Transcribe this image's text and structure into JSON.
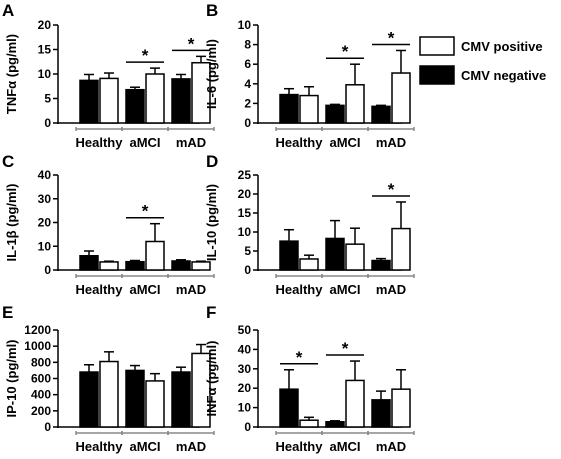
{
  "colors": {
    "cmv_negative": "#000000",
    "cmv_positive": "#ffffff",
    "axis": "#000000"
  },
  "legend": {
    "positive_label": "CMV positive",
    "negative_label": "CMV negative"
  },
  "chart_data": [
    {
      "panel": "A",
      "type": "bar",
      "ylabel": "TNFα (pg/ml)",
      "ylim": [
        0,
        20
      ],
      "yticks": [
        0,
        5,
        10,
        15,
        20
      ],
      "categories": [
        "Healthy",
        "aMCI",
        "mAD"
      ],
      "series": [
        {
          "name": "CMV negative",
          "values": [
            8.7,
            6.8,
            9.0
          ],
          "errors": [
            1.2,
            0.5,
            0.9
          ]
        },
        {
          "name": "CMV positive",
          "values": [
            9.1,
            10.0,
            12.3
          ],
          "errors": [
            1.1,
            1.2,
            1.3
          ]
        }
      ],
      "significance": [
        {
          "category": "aMCI",
          "label": "*"
        },
        {
          "category": "mAD",
          "label": "*"
        }
      ]
    },
    {
      "panel": "B",
      "type": "bar",
      "ylabel": "IL-6 (pg/ml)",
      "ylim": [
        0,
        10
      ],
      "yticks": [
        0,
        2,
        4,
        6,
        8,
        10
      ],
      "categories": [
        "Healthy",
        "aMCI",
        "mAD"
      ],
      "series": [
        {
          "name": "CMV negative",
          "values": [
            2.9,
            1.8,
            1.7
          ],
          "errors": [
            0.6,
            0.1,
            0.1
          ]
        },
        {
          "name": "CMV positive",
          "values": [
            2.8,
            3.9,
            5.1
          ],
          "errors": [
            0.9,
            2.1,
            2.3
          ]
        }
      ],
      "significance": [
        {
          "category": "aMCI",
          "label": "*"
        },
        {
          "category": "mAD",
          "label": "*"
        }
      ]
    },
    {
      "panel": "C",
      "type": "bar",
      "ylabel": "IL-1β (pg/ml)",
      "ylim": [
        0,
        40
      ],
      "yticks": [
        0,
        10,
        20,
        30,
        40
      ],
      "categories": [
        "Healthy",
        "aMCI",
        "mAD"
      ],
      "series": [
        {
          "name": "CMV negative",
          "values": [
            6.0,
            3.5,
            3.8
          ],
          "errors": [
            2.0,
            0.5,
            0.5
          ]
        },
        {
          "name": "CMV positive",
          "values": [
            3.4,
            12.0,
            3.4
          ],
          "errors": [
            0.3,
            7.5,
            0.3
          ]
        }
      ],
      "significance": [
        {
          "category": "aMCI",
          "label": "*"
        }
      ]
    },
    {
      "panel": "D",
      "type": "bar",
      "ylabel": "IL-10 (pg/ml)",
      "ylim": [
        0,
        25
      ],
      "yticks": [
        0,
        5,
        10,
        15,
        20,
        25
      ],
      "categories": [
        "Healthy",
        "aMCI",
        "mAD"
      ],
      "series": [
        {
          "name": "CMV negative",
          "values": [
            7.6,
            8.3,
            2.5
          ],
          "errors": [
            3.0,
            4.7,
            0.5
          ]
        },
        {
          "name": "CMV positive",
          "values": [
            2.9,
            6.8,
            10.9
          ],
          "errors": [
            1.0,
            4.2,
            7.0
          ]
        }
      ],
      "significance": [
        {
          "category": "mAD",
          "label": "*"
        }
      ]
    },
    {
      "panel": "E",
      "type": "bar",
      "ylabel": "IP-10 (pg/ml)",
      "ylim": [
        0,
        1200
      ],
      "yticks": [
        0,
        200,
        400,
        600,
        800,
        1000,
        1200
      ],
      "categories": [
        "Healthy",
        "aMCI",
        "mAD"
      ],
      "series": [
        {
          "name": "CMV negative",
          "values": [
            680,
            700,
            680
          ],
          "errors": [
            90,
            60,
            60
          ]
        },
        {
          "name": "CMV positive",
          "values": [
            810,
            570,
            910
          ],
          "errors": [
            120,
            90,
            110
          ]
        }
      ],
      "significance": []
    },
    {
      "panel": "F",
      "type": "bar",
      "ylabel": "INFα (pg/ml)",
      "ylim": [
        0,
        50
      ],
      "yticks": [
        0,
        10,
        20,
        30,
        40,
        50
      ],
      "categories": [
        "Healthy",
        "aMCI",
        "mAD"
      ],
      "series": [
        {
          "name": "CMV negative",
          "values": [
            19.5,
            2.7,
            14.0
          ],
          "errors": [
            10.0,
            0.5,
            4.5
          ]
        },
        {
          "name": "CMV positive",
          "values": [
            3.5,
            24.0,
            19.5
          ],
          "errors": [
            1.5,
            10.0,
            10.0
          ]
        }
      ],
      "significance": [
        {
          "category": "Healthy",
          "label": "*"
        },
        {
          "category": "aMCI",
          "label": "*"
        }
      ]
    }
  ]
}
